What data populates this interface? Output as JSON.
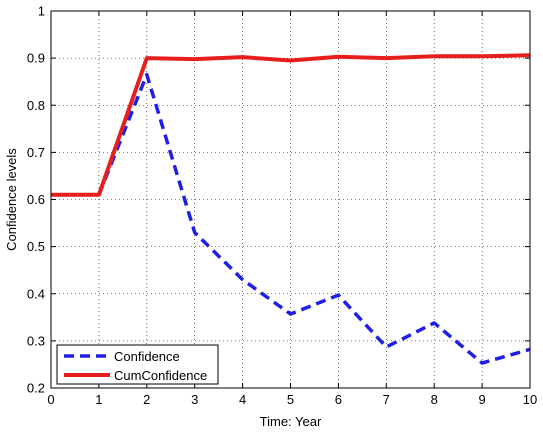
{
  "chart_data": {
    "type": "line",
    "title": "",
    "xlabel": "Time: Year",
    "ylabel": "Confidence levels",
    "xlim": [
      0,
      10
    ],
    "ylim": [
      0.2,
      1.0
    ],
    "x_ticks": [
      0,
      1,
      2,
      3,
      4,
      5,
      6,
      7,
      8,
      9,
      10
    ],
    "y_ticks": [
      0.2,
      0.3,
      0.4,
      0.5,
      0.6,
      0.7,
      0.8,
      0.9,
      1.0
    ],
    "x_tick_labels": [
      "0",
      "1",
      "2",
      "3",
      "4",
      "5",
      "6",
      "7",
      "8",
      "9",
      "10"
    ],
    "y_tick_labels": [
      "0.2",
      "0.3",
      "0.4",
      "0.5",
      "0.6",
      "0.7",
      "0.8",
      "0.9",
      "1"
    ],
    "grid": true,
    "legend_position": "bottom-left",
    "x": [
      0,
      1,
      2,
      3,
      4,
      5,
      6,
      7,
      8,
      9,
      10
    ],
    "series": [
      {
        "name": "Confidence",
        "color": "#1f1fe6",
        "style": "dashed",
        "values": [
          0.61,
          0.61,
          0.865,
          0.53,
          0.43,
          0.357,
          0.397,
          0.287,
          0.338,
          0.253,
          0.282
        ]
      },
      {
        "name": "CumConfidence",
        "color": "#e61e1e",
        "style": "solid",
        "values": [
          0.61,
          0.61,
          0.9,
          0.898,
          0.902,
          0.895,
          0.903,
          0.9,
          0.904,
          0.904,
          0.906
        ]
      }
    ]
  }
}
